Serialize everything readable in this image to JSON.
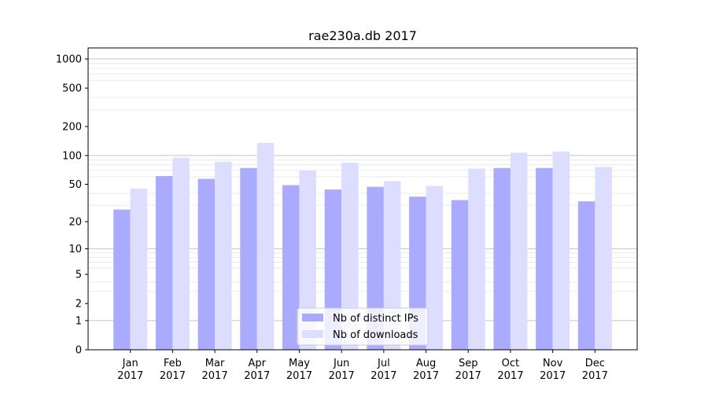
{
  "chart_data": {
    "type": "bar",
    "title": "rae230a.db 2017",
    "xlabel": "",
    "ylabel": "",
    "yscale": "symlog",
    "ylim": [
      0,
      1300
    ],
    "yticks": [
      {
        "value": 0,
        "label": "0"
      },
      {
        "value": 1,
        "label": "1"
      },
      {
        "value": 2,
        "label": "2"
      },
      {
        "value": 5,
        "label": "5"
      },
      {
        "value": 10,
        "label": "10"
      },
      {
        "value": 20,
        "label": "20"
      },
      {
        "value": 50,
        "label": "50"
      },
      {
        "value": 100,
        "label": "100"
      },
      {
        "value": 200,
        "label": "200"
      },
      {
        "value": 500,
        "label": "500"
      },
      {
        "value": 1000,
        "label": "1000"
      }
    ],
    "categories": [
      [
        "Jan",
        "2017"
      ],
      [
        "Feb",
        "2017"
      ],
      [
        "Mar",
        "2017"
      ],
      [
        "Apr",
        "2017"
      ],
      [
        "May",
        "2017"
      ],
      [
        "Jun",
        "2017"
      ],
      [
        "Jul",
        "2017"
      ],
      [
        "Aug",
        "2017"
      ],
      [
        "Sep",
        "2017"
      ],
      [
        "Oct",
        "2017"
      ],
      [
        "Nov",
        "2017"
      ],
      [
        "Dec",
        "2017"
      ]
    ],
    "series": [
      {
        "name": "Nb of distinct IPs",
        "color": "#aaaaff",
        "values": [
          27,
          61,
          57,
          74,
          49,
          44,
          47,
          37,
          34,
          74,
          74,
          33
        ]
      },
      {
        "name": "Nb of downloads",
        "color": "#ddddff",
        "values": [
          45,
          95,
          86,
          135,
          70,
          84,
          54,
          48,
          73,
          107,
          110,
          76
        ]
      }
    ],
    "grid": true,
    "legend_position": "bottom-center"
  }
}
